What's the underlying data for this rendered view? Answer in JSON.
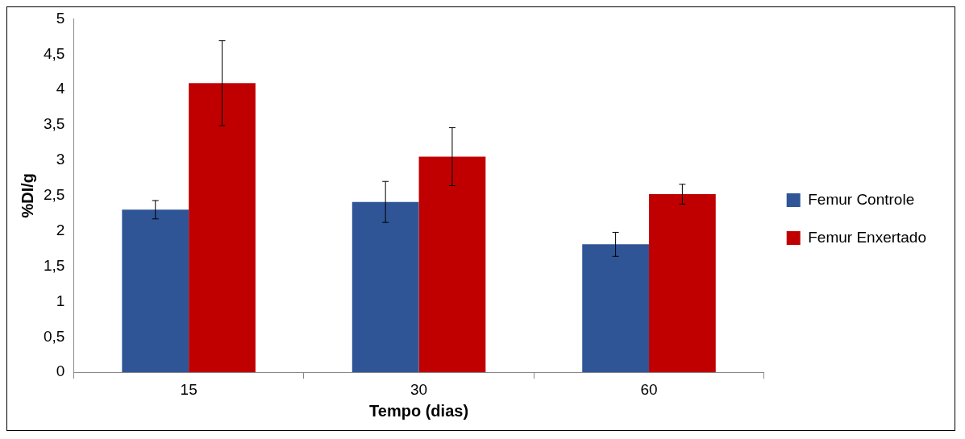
{
  "chart_data": {
    "type": "bar",
    "xlabel": "Tempo (dias)",
    "ylabel": "%DI/g",
    "categories": [
      "15",
      "30",
      "60"
    ],
    "series": [
      {
        "name": "Femur Controle",
        "color": "#2f5597",
        "values": [
          2.3,
          2.41,
          1.81
        ],
        "errors": [
          0.13,
          0.29,
          0.17
        ]
      },
      {
        "name": "Femur Enxertado",
        "color": "#c00000",
        "values": [
          4.09,
          3.05,
          2.52
        ],
        "errors": [
          0.6,
          0.41,
          0.14
        ]
      }
    ],
    "ylim": [
      0,
      5
    ],
    "yticks": [
      0,
      {
        "value": 0.5,
        "label": "0,5"
      },
      1,
      {
        "value": 1.5,
        "label": "1,5"
      },
      2,
      {
        "value": 2.5,
        "label": "2,5"
      },
      3,
      {
        "value": 3.5,
        "label": "3,5"
      },
      4,
      {
        "value": 4.5,
        "label": "4,5"
      },
      5
    ],
    "grid": false,
    "legend": "right"
  }
}
